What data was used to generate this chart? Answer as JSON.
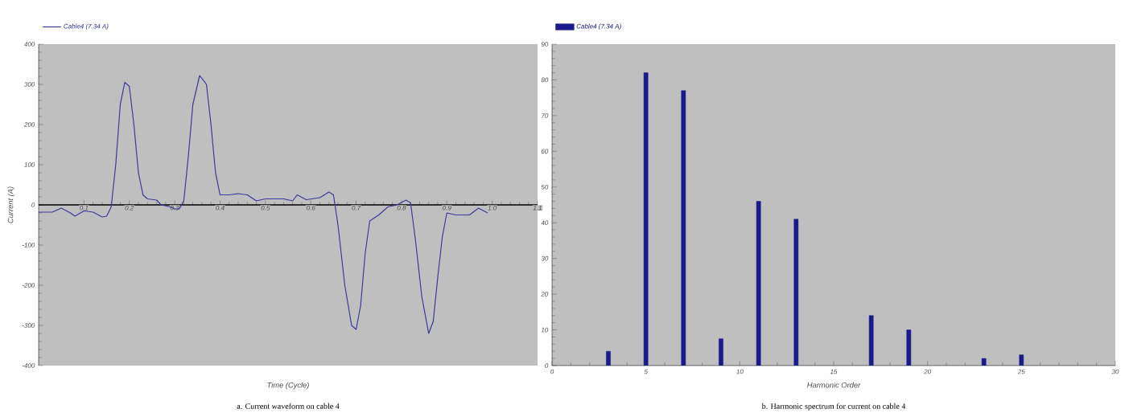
{
  "chart_data": [
    {
      "type": "line",
      "xlabel": "Time (Cycle)",
      "ylabel": "Current (A)",
      "legend": "top left",
      "annotations": [
        "a. Current waveform on cable 4"
      ],
      "xlim": [
        0,
        1.1
      ],
      "xticks": [
        0.1,
        0.2,
        0.3,
        0.4,
        0.5,
        0.6,
        0.7,
        0.8,
        0.9,
        {
          "value": 1.0,
          "label": "1.0"
        },
        1.1
      ],
      "ylim": [
        -400,
        400
      ],
      "yticks": [
        -400,
        -300,
        -200,
        -100,
        0,
        100,
        200,
        300,
        400
      ],
      "series": [
        {
          "name": "Cable4 (7.34 A)",
          "color": "#3a3a9a",
          "x": [
            0.0,
            0.03,
            0.05,
            0.07,
            0.08,
            0.1,
            0.12,
            0.14,
            0.15,
            0.16,
            0.17,
            0.18,
            0.19,
            0.2,
            0.21,
            0.22,
            0.23,
            0.24,
            0.26,
            0.27,
            0.29,
            0.3,
            0.31,
            0.32,
            0.33,
            0.34,
            0.355,
            0.37,
            0.38,
            0.39,
            0.4,
            0.42,
            0.44,
            0.46,
            0.48,
            0.5,
            0.54,
            0.56,
            0.57,
            0.59,
            0.62,
            0.64,
            0.65,
            0.66,
            0.675,
            0.69,
            0.7,
            0.71,
            0.72,
            0.73,
            0.75,
            0.77,
            0.79,
            0.81,
            0.82,
            0.83,
            0.845,
            0.86,
            0.87,
            0.88,
            0.89,
            0.9,
            0.92,
            0.95,
            0.97,
            0.99
          ],
          "values": [
            -18,
            -18,
            -8,
            -20,
            -28,
            -15,
            -18,
            -30,
            -28,
            -5,
            100,
            250,
            305,
            295,
            200,
            80,
            25,
            15,
            12,
            0,
            -5,
            -10,
            -10,
            10,
            120,
            250,
            322,
            300,
            200,
            80,
            25,
            25,
            28,
            25,
            10,
            15,
            15,
            10,
            25,
            13,
            18,
            32,
            25,
            -50,
            -200,
            -300,
            -310,
            -250,
            -120,
            -40,
            -25,
            -5,
            0,
            12,
            5,
            -80,
            -230,
            -320,
            -290,
            -180,
            -80,
            -20,
            -25,
            -25,
            -8,
            -20
          ]
        }
      ]
    },
    {
      "type": "bar",
      "xlabel": "Harmonic Order",
      "legend": "top left",
      "annotations": [
        "b. Harmonic spectrum for current on cable 4"
      ],
      "xlim": [
        0,
        30
      ],
      "xticks": [
        0,
        5,
        10,
        15,
        20,
        25,
        30
      ],
      "ylim": [
        0,
        90
      ],
      "yticks": [
        0,
        10,
        20,
        30,
        40,
        50,
        60,
        70,
        80,
        90
      ],
      "series": [
        {
          "name": "Cable4 (7.34 A)",
          "color": "#1a1a8c",
          "x": [
            3,
            5,
            7,
            9,
            11,
            13,
            17,
            19,
            23,
            25
          ],
          "values": [
            4,
            82,
            77,
            7.5,
            46,
            41,
            14,
            10,
            2,
            3
          ]
        }
      ]
    }
  ]
}
